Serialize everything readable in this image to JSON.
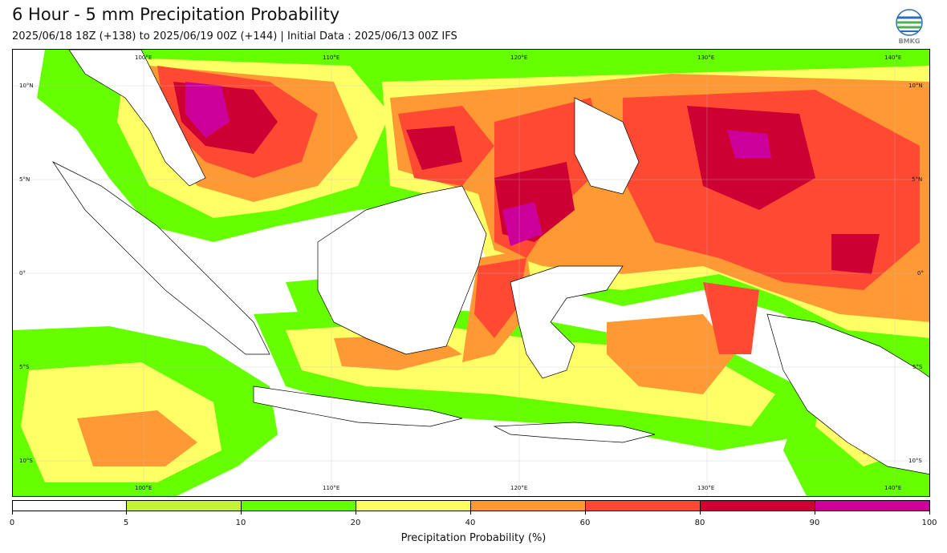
{
  "title": "6 Hour - 5 mm Precipitation Probability",
  "subtitle": "2025/06/18 18Z (+138) to 2025/06/19 00Z (+144) | Initial Data : 2025/06/13 00Z IFS",
  "logo_text": "BMKG",
  "map": {
    "lon_labels": [
      "100°E",
      "110°E",
      "120°E",
      "130°E",
      "140°E"
    ],
    "lat_labels": [
      "10°N",
      "5°N",
      "0°",
      "5°S",
      "10°S"
    ],
    "lat_labels_right": [
      "10°N",
      "5°N",
      "0°",
      "5°S",
      "10°S"
    ]
  },
  "colorbar": {
    "label": "Precipitation Probability (%)",
    "ticks": [
      "0",
      "5",
      "10",
      "20",
      "40",
      "60",
      "80",
      "90",
      "100"
    ],
    "colors": [
      "#ffffff",
      "#c4f33a",
      "#66ff00",
      "#ffff66",
      "#ff9933",
      "#ff4a33",
      "#cc0033",
      "#cc0099"
    ]
  }
}
